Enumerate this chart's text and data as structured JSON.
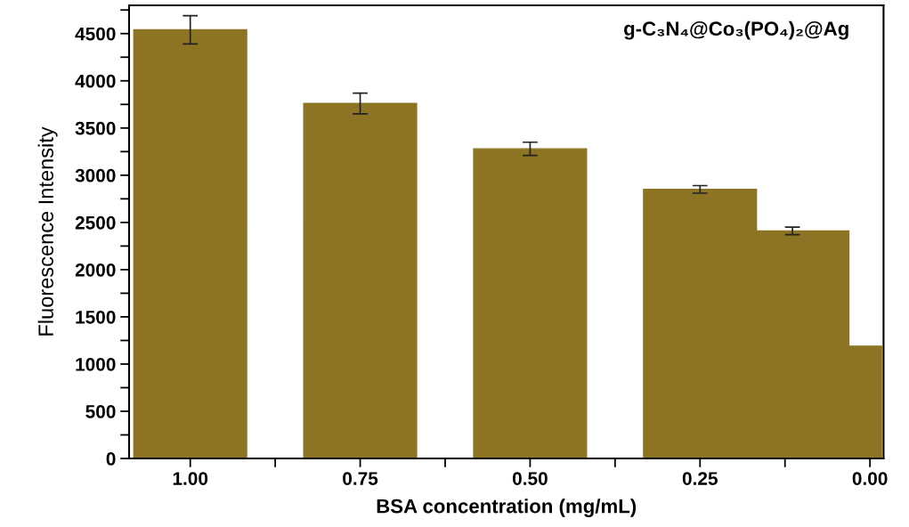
{
  "chart_data": {
    "type": "bar",
    "x": [
      1.0,
      0.75,
      0.5,
      0.25,
      0.114,
      0.066
    ],
    "values": [
      4540,
      3760,
      3280,
      2850,
      2410,
      1190
    ],
    "errors": [
      150,
      110,
      70,
      40,
      40,
      null
    ],
    "color": "#8c7424",
    "xlabel": "BSA concentration (mg/mL)",
    "ylabel": "Fluorescence Intensity",
    "annotations": [
      "g-C₃N₄@Co₃(PO₄)₂@Ag"
    ],
    "xlim": [
      1.09,
      -0.02
    ],
    "xticks": [
      {
        "value": 1.0,
        "label": "1.00"
      },
      {
        "value": 0.875,
        "label": null
      },
      {
        "value": 0.75,
        "label": "0.75"
      },
      {
        "value": 0.625,
        "label": null
      },
      {
        "value": 0.5,
        "label": "0.50"
      },
      {
        "value": 0.375,
        "label": null
      },
      {
        "value": 0.25,
        "label": "0.25"
      },
      {
        "value": 0.125,
        "label": null
      },
      {
        "value": 0.0,
        "label": "0.00"
      }
    ],
    "ylim": [
      0,
      4800
    ],
    "yticks": [
      0,
      {
        "value": 250,
        "label": null
      },
      500,
      {
        "value": 750,
        "label": null
      },
      1000,
      {
        "value": 1250,
        "label": null
      },
      1500,
      {
        "value": 1750,
        "label": null
      },
      2000,
      {
        "value": 2250,
        "label": null
      },
      2500,
      {
        "value": 2750,
        "label": null
      },
      3000,
      {
        "value": 3250,
        "label": null
      },
      3500,
      {
        "value": 3750,
        "label": null
      },
      4000,
      {
        "value": 4250,
        "label": null
      },
      4500,
      {
        "value": 4750,
        "label": null
      }
    ],
    "grid": false
  }
}
